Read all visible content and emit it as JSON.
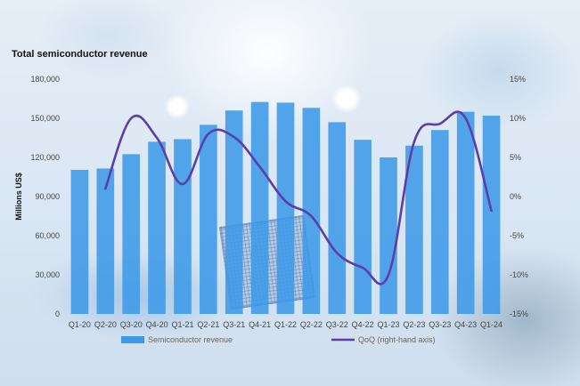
{
  "chart_data": {
    "type": "bar",
    "title": "Total semiconductor revenue",
    "xlabel": "",
    "ylabel": "Millions US$",
    "categories": [
      "Q1-20",
      "Q2-20",
      "Q3-20",
      "Q4-20",
      "Q1-21",
      "Q2-21",
      "Q3-21",
      "Q4-21",
      "Q1-22",
      "Q2-22",
      "Q3-22",
      "Q4-22",
      "Q1-23",
      "Q2-23",
      "Q3-23",
      "Q4-23",
      "Q1-24"
    ],
    "ylim": [
      0,
      180000
    ],
    "y_ticks": [
      "0",
      "30,000",
      "60,000",
      "90,000",
      "120,000",
      "150,000",
      "180,000"
    ],
    "y2lim": [
      -15,
      15
    ],
    "y2_ticks": [
      "-15%",
      "-10%",
      "-5%",
      "0%",
      "5%",
      "10%",
      "15%"
    ],
    "series": [
      {
        "name": "Semiconductor revenue",
        "type": "bar",
        "axis": "left",
        "color": "#3d9ae8",
        "values": [
          110500,
          111500,
          122500,
          132000,
          134000,
          145000,
          156000,
          162500,
          162000,
          158000,
          147000,
          133500,
          120000,
          129000,
          141000,
          155000,
          152000
        ]
      },
      {
        "name": "QoQ (right-hand axis)",
        "type": "line",
        "axis": "right",
        "color": "#5b3ea8",
        "values": [
          null,
          1.0,
          10.0,
          7.5,
          1.6,
          8.0,
          7.6,
          3.8,
          -0.6,
          -2.5,
          -7.2,
          -9.1,
          -10.0,
          7.0,
          9.3,
          10.0,
          -1.8
        ]
      }
    ],
    "legend_position": "bottom",
    "grid": false
  }
}
